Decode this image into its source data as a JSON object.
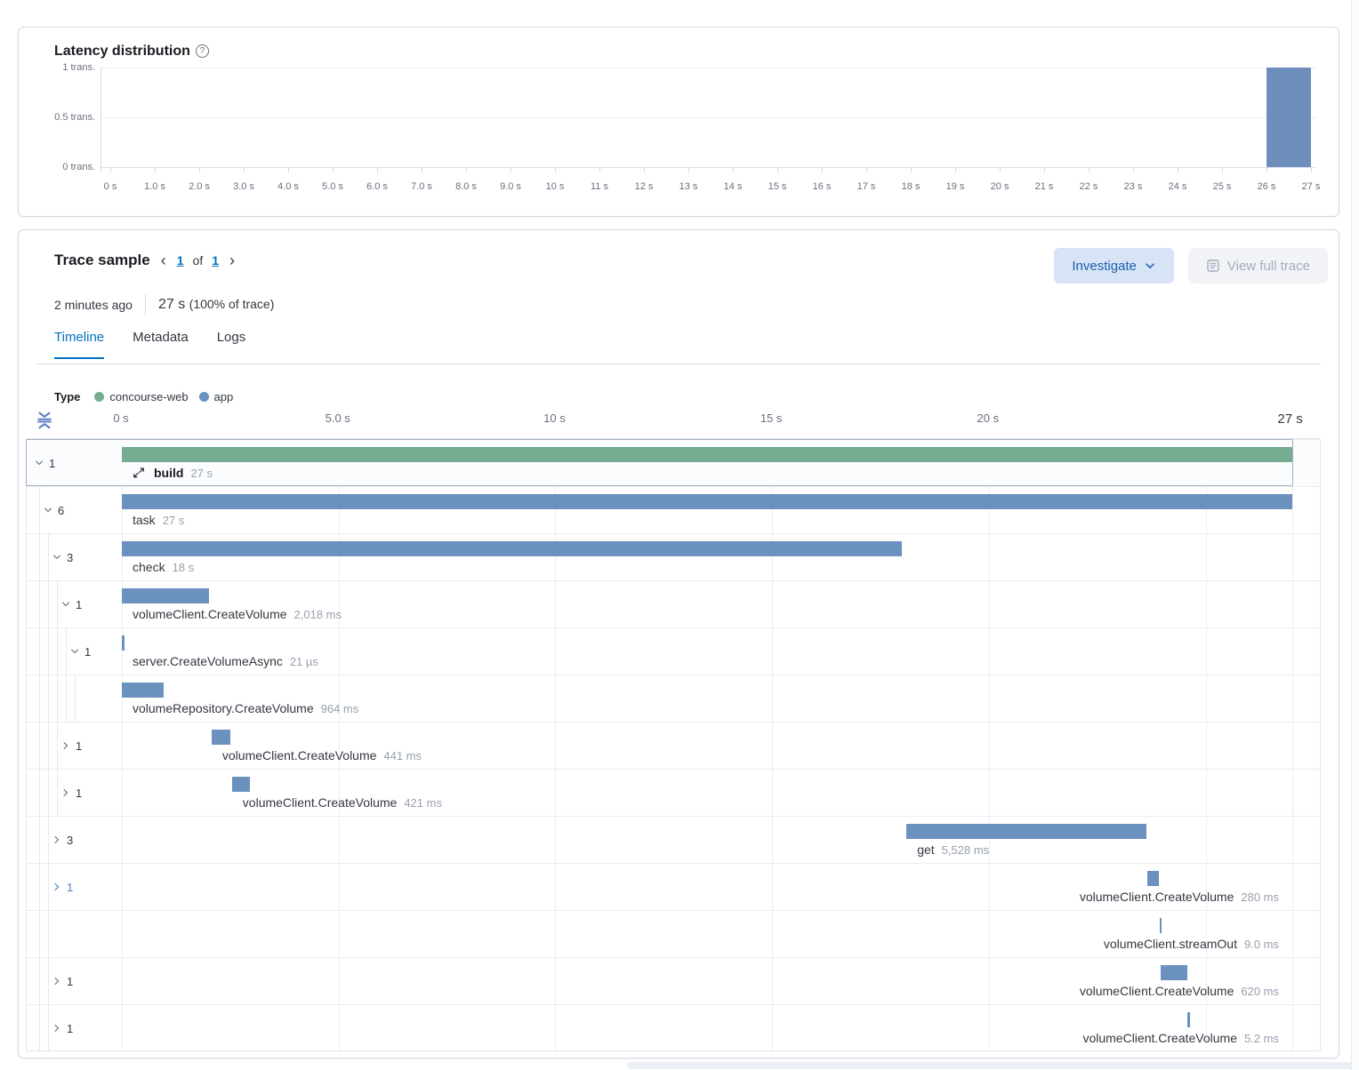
{
  "latency_panel": {
    "title": "Latency distribution",
    "help_icon": "question-circle-icon",
    "chart_data": {
      "type": "bar",
      "title": "Latency distribution",
      "x_tick_labels": [
        "0 s",
        "1.0 s",
        "2.0 s",
        "3.0 s",
        "4.0 s",
        "5.0 s",
        "6.0 s",
        "7.0 s",
        "8.0 s",
        "9.0 s",
        "10 s",
        "11 s",
        "12 s",
        "13 s",
        "14 s",
        "15 s",
        "16 s",
        "17 s",
        "18 s",
        "19 s",
        "20 s",
        "21 s",
        "22 s",
        "23 s",
        "24 s",
        "25 s",
        "26 s",
        "27 s"
      ],
      "y_tick_labels": [
        "0 trans.",
        "0.5 trans.",
        "1 trans."
      ],
      "xlim": [
        0,
        27
      ],
      "ylim": [
        0,
        1
      ],
      "grid": true,
      "legend": false,
      "bar_color": "#6e8fbd",
      "bars": [
        {
          "x_start_s": 26,
          "x_end_s": 27,
          "count": 1
        }
      ]
    }
  },
  "trace_panel": {
    "title": "Trace sample",
    "pagination": {
      "prev": "‹",
      "current": "1",
      "of_label": "of",
      "total": "1",
      "next": "›"
    },
    "investigate_button": "Investigate",
    "view_full_trace_button": "View full trace",
    "timestamp": "2 minutes ago",
    "duration_value": "27 s",
    "duration_pct": "(100% of trace)",
    "tabs": [
      {
        "label": "Timeline",
        "active": true
      },
      {
        "label": "Metadata",
        "active": false
      },
      {
        "label": "Logs",
        "active": false
      }
    ],
    "legend": {
      "label": "Type",
      "items": [
        {
          "label": "concourse-web",
          "color": "#76ac92"
        },
        {
          "label": "app",
          "color": "#6b92bf"
        }
      ]
    },
    "ruler": {
      "total_s": 27,
      "ticks": [
        {
          "label": "0 s",
          "s": 0
        },
        {
          "label": "5.0 s",
          "s": 5
        },
        {
          "label": "10 s",
          "s": 10
        },
        {
          "label": "15 s",
          "s": 15
        },
        {
          "label": "20 s",
          "s": 20
        },
        {
          "label": "27 s",
          "s": 27,
          "last": true
        }
      ]
    },
    "waterfall": {
      "gridlines_s": [
        0,
        5,
        10,
        15,
        20,
        25,
        27
      ],
      "colors": {
        "green": "#76ac92",
        "blue": "#6b92bf"
      },
      "rows": [
        {
          "count": "1",
          "expanded": true,
          "level": 0,
          "icon": "transaction-merge-icon",
          "name": "build",
          "bold": true,
          "duration": "27 s",
          "color": "green",
          "start_s": 0,
          "duration_s": 27,
          "selected": true
        },
        {
          "count": "6",
          "expanded": true,
          "level": 1,
          "name": "task",
          "duration": "27 s",
          "color": "blue",
          "start_s": 0,
          "duration_s": 27
        },
        {
          "count": "3",
          "expanded": true,
          "level": 2,
          "name": "check",
          "duration": "18 s",
          "color": "blue",
          "start_s": 0,
          "duration_s": 18
        },
        {
          "count": "1",
          "expanded": true,
          "level": 3,
          "name": "volumeClient.CreateVolume",
          "duration": "2,018 ms",
          "color": "blue",
          "start_s": 0,
          "duration_s": 2.018
        },
        {
          "count": "1",
          "expanded": true,
          "level": 4,
          "name": "server.CreateVolumeAsync",
          "duration": "21 µs",
          "color": "blue",
          "start_s": 0,
          "duration_s": 2.1e-05
        },
        {
          "count": null,
          "level": 5,
          "name": "volumeRepository.CreateVolume",
          "duration": "964 ms",
          "color": "blue",
          "start_s": 0,
          "duration_s": 0.964
        },
        {
          "count": "1",
          "expanded": false,
          "level": 3,
          "name": "volumeClient.CreateVolume",
          "duration": "441 ms",
          "color": "blue",
          "start_s": 2.07,
          "duration_s": 0.441
        },
        {
          "count": "1",
          "expanded": false,
          "level": 3,
          "name": "volumeClient.CreateVolume",
          "duration": "421 ms",
          "color": "blue",
          "start_s": 2.54,
          "duration_s": 0.421
        },
        {
          "count": "3",
          "expanded": false,
          "level": 2,
          "name": "get",
          "duration": "5,528 ms",
          "color": "blue",
          "start_s": 18.1,
          "duration_s": 5.528
        },
        {
          "count": "1",
          "expanded": false,
          "level": 2,
          "count_blue": true,
          "name": "volumeClient.CreateVolume",
          "duration": "280 ms",
          "color": "blue",
          "start_s": 23.65,
          "duration_s": 0.28,
          "label_align": "right"
        },
        {
          "count": null,
          "level": 2,
          "name": "volumeClient.streamOut",
          "duration": "9.0 ms",
          "color": "blue",
          "start_s": 23.94,
          "duration_s": 0.009,
          "label_align": "right"
        },
        {
          "count": "1",
          "expanded": false,
          "level": 2,
          "name": "volumeClient.CreateVolume",
          "duration": "620 ms",
          "color": "blue",
          "start_s": 23.96,
          "duration_s": 0.62,
          "label_align": "right"
        },
        {
          "count": "1",
          "expanded": false,
          "level": 2,
          "name": "volumeClient.CreateVolume",
          "duration": "5.2 ms",
          "color": "blue",
          "start_s": 24.58,
          "duration_s": 0.0052,
          "label_align": "right"
        }
      ]
    }
  }
}
